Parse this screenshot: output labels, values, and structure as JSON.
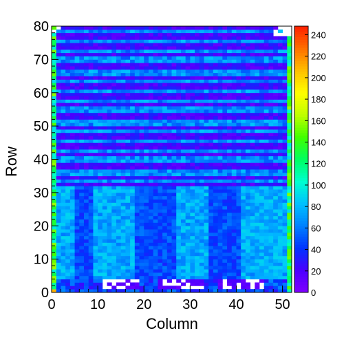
{
  "chart_data": {
    "type": "heatmap",
    "title": "",
    "xlabel": "Column",
    "ylabel": "Row",
    "xlim": [
      0,
      52
    ],
    "ylim": [
      0,
      80
    ],
    "x_ticks": [
      0,
      10,
      20,
      30,
      40,
      50
    ],
    "y_ticks": [
      0,
      10,
      20,
      30,
      40,
      50,
      60,
      70,
      80
    ],
    "colorbar": {
      "min": 0,
      "max": 248,
      "ticks": [
        0,
        20,
        40,
        60,
        80,
        100,
        120,
        140,
        160,
        180,
        200,
        220,
        240
      ],
      "palette": [
        "#8000ff",
        "#4b00ff",
        "#0033ff",
        "#0080ff",
        "#00c0ff",
        "#00ffd0",
        "#00ff60",
        "#40ff00",
        "#c0ff00",
        "#ffff00",
        "#ffc000",
        "#ff7000",
        "#ff2000"
      ]
    },
    "grid": false,
    "description_of_values": {
      "rows_0_to_3": "low values 20-60 with empty cells in three blocks near columns 11-18, 23-32, 36-45",
      "rows_4_to_31": "mostly 55-90 (cyan/light blue), darker ~35-50 bands around columns 5-8, 18-26, 34-40",
      "rows_32_to_80": "alternating stripes: dark rows ~10-30 (violet/blue) and bright rows ~50-80 (light blue/cyan)",
      "edges": "column 0 and column 52 edges show high values ~90-160 (green)"
    }
  }
}
